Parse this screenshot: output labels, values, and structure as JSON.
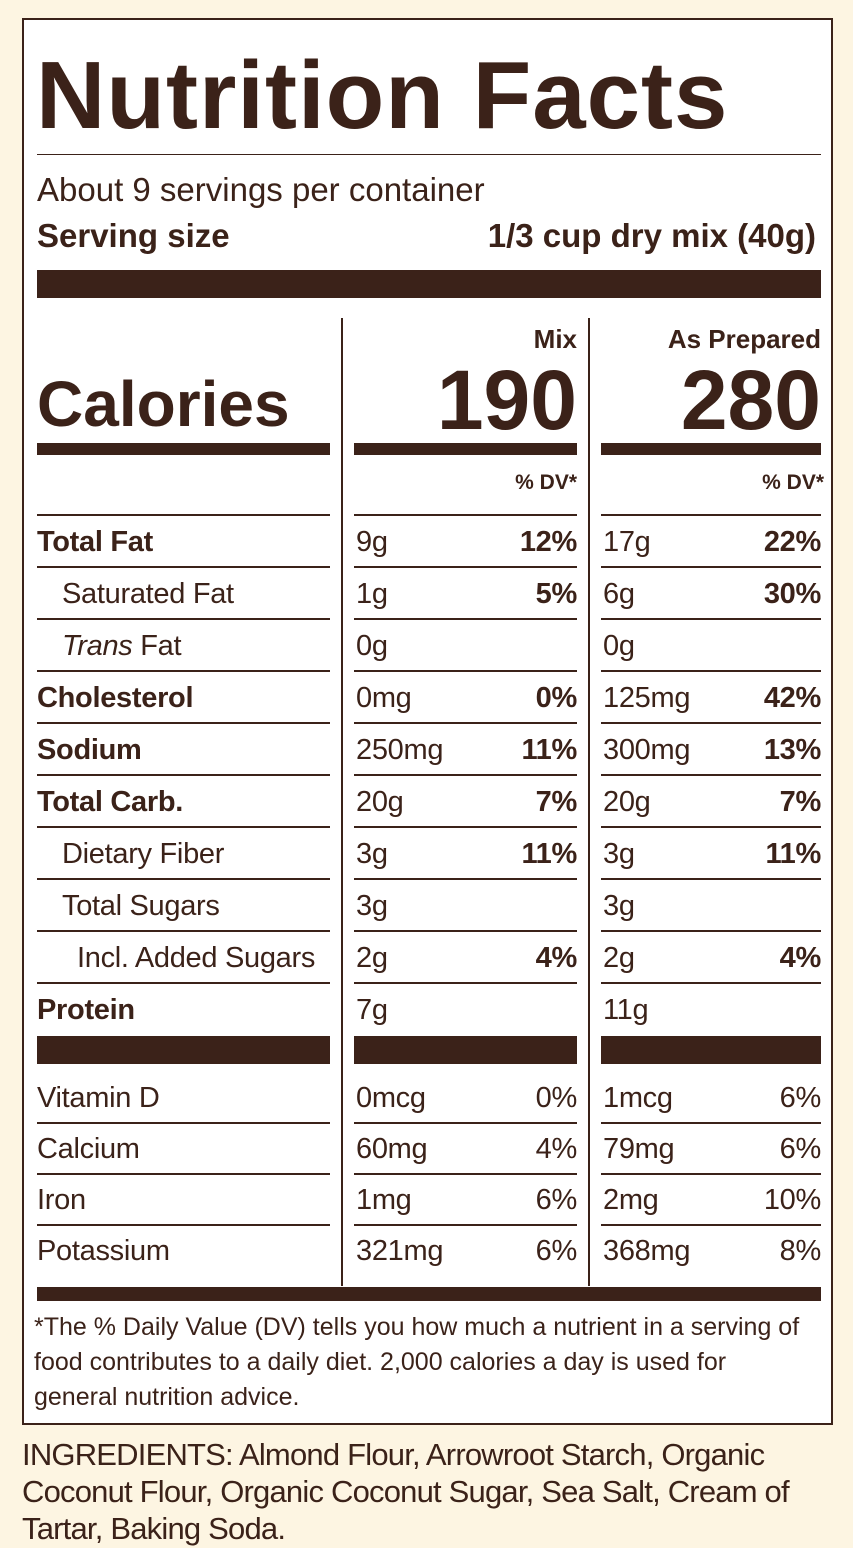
{
  "title": "Nutrition Facts",
  "servings": "About 9 servings per container",
  "serving_size": {
    "label": "Serving size",
    "value": "1/3 cup dry mix (40g)"
  },
  "calories": {
    "label": "Calories",
    "columns": [
      {
        "name": "Mix",
        "value": "190",
        "dv_header": "% DV*"
      },
      {
        "name": "As Prepared",
        "value": "280",
        "dv_header": "% DV*"
      }
    ]
  },
  "nutrients": [
    {
      "name": "Total Fat",
      "bold": true,
      "indent": 0,
      "mix": [
        "9g",
        "12%"
      ],
      "prepared": [
        "17g",
        "22%"
      ]
    },
    {
      "name": "Saturated Fat",
      "bold": false,
      "indent": 1,
      "mix": [
        "1g",
        "5%"
      ],
      "prepared": [
        "6g",
        "30%"
      ]
    },
    {
      "name_italic": "Trans",
      "name": "Fat",
      "bold": false,
      "indent": 1,
      "mix": [
        "0g",
        null
      ],
      "prepared": [
        "0g",
        null
      ]
    },
    {
      "name": "Cholesterol",
      "bold": true,
      "indent": 0,
      "mix": [
        "0mg",
        "0%"
      ],
      "prepared": [
        "125mg",
        "42%"
      ]
    },
    {
      "name": "Sodium",
      "bold": true,
      "indent": 0,
      "mix": [
        "250mg",
        "11%"
      ],
      "prepared": [
        "300mg",
        "13%"
      ]
    },
    {
      "name": "Total Carb.",
      "bold": true,
      "indent": 0,
      "mix": [
        "20g",
        "7%"
      ],
      "prepared": [
        "20g",
        "7%"
      ]
    },
    {
      "name": "Dietary Fiber",
      "bold": false,
      "indent": 1,
      "mix": [
        "3g",
        "11%"
      ],
      "prepared": [
        "3g",
        "11%"
      ]
    },
    {
      "name": "Total Sugars",
      "bold": false,
      "indent": 1,
      "mix": [
        "3g",
        null
      ],
      "prepared": [
        "3g",
        null
      ]
    },
    {
      "name": "Incl. Added Sugars",
      "bold": false,
      "indent": 2,
      "mix": [
        "2g",
        "4%"
      ],
      "prepared": [
        "2g",
        "4%"
      ]
    },
    {
      "name": "Protein",
      "bold": true,
      "indent": 0,
      "mix": [
        "7g",
        null
      ],
      "prepared": [
        "11g",
        null
      ]
    }
  ],
  "vitamins": [
    {
      "name": "Vitamin D",
      "mix": [
        "0mcg",
        "0%"
      ],
      "prepared": [
        "1mcg",
        "6%"
      ]
    },
    {
      "name": "Calcium",
      "mix": [
        "60mg",
        "4%"
      ],
      "prepared": [
        "79mg",
        "6%"
      ]
    },
    {
      "name": "Iron",
      "mix": [
        "1mg",
        "6%"
      ],
      "prepared": [
        "2mg",
        "10%"
      ]
    },
    {
      "name": "Potassium",
      "mix": [
        "321mg",
        "6%"
      ],
      "prepared": [
        "368mg",
        "8%"
      ]
    }
  ],
  "footnote": "*The % Daily Value (DV) tells you how much a nutrient in a serving of food contributes to a daily diet. 2,000 calories a day is used for general nutrition advice.",
  "ingredients": "INGREDIENTS: Almond Flour, Arrowroot Starch, Organic Coconut Flour, Organic Coconut Sugar, Sea Salt, Cream of Tartar, Baking Soda."
}
